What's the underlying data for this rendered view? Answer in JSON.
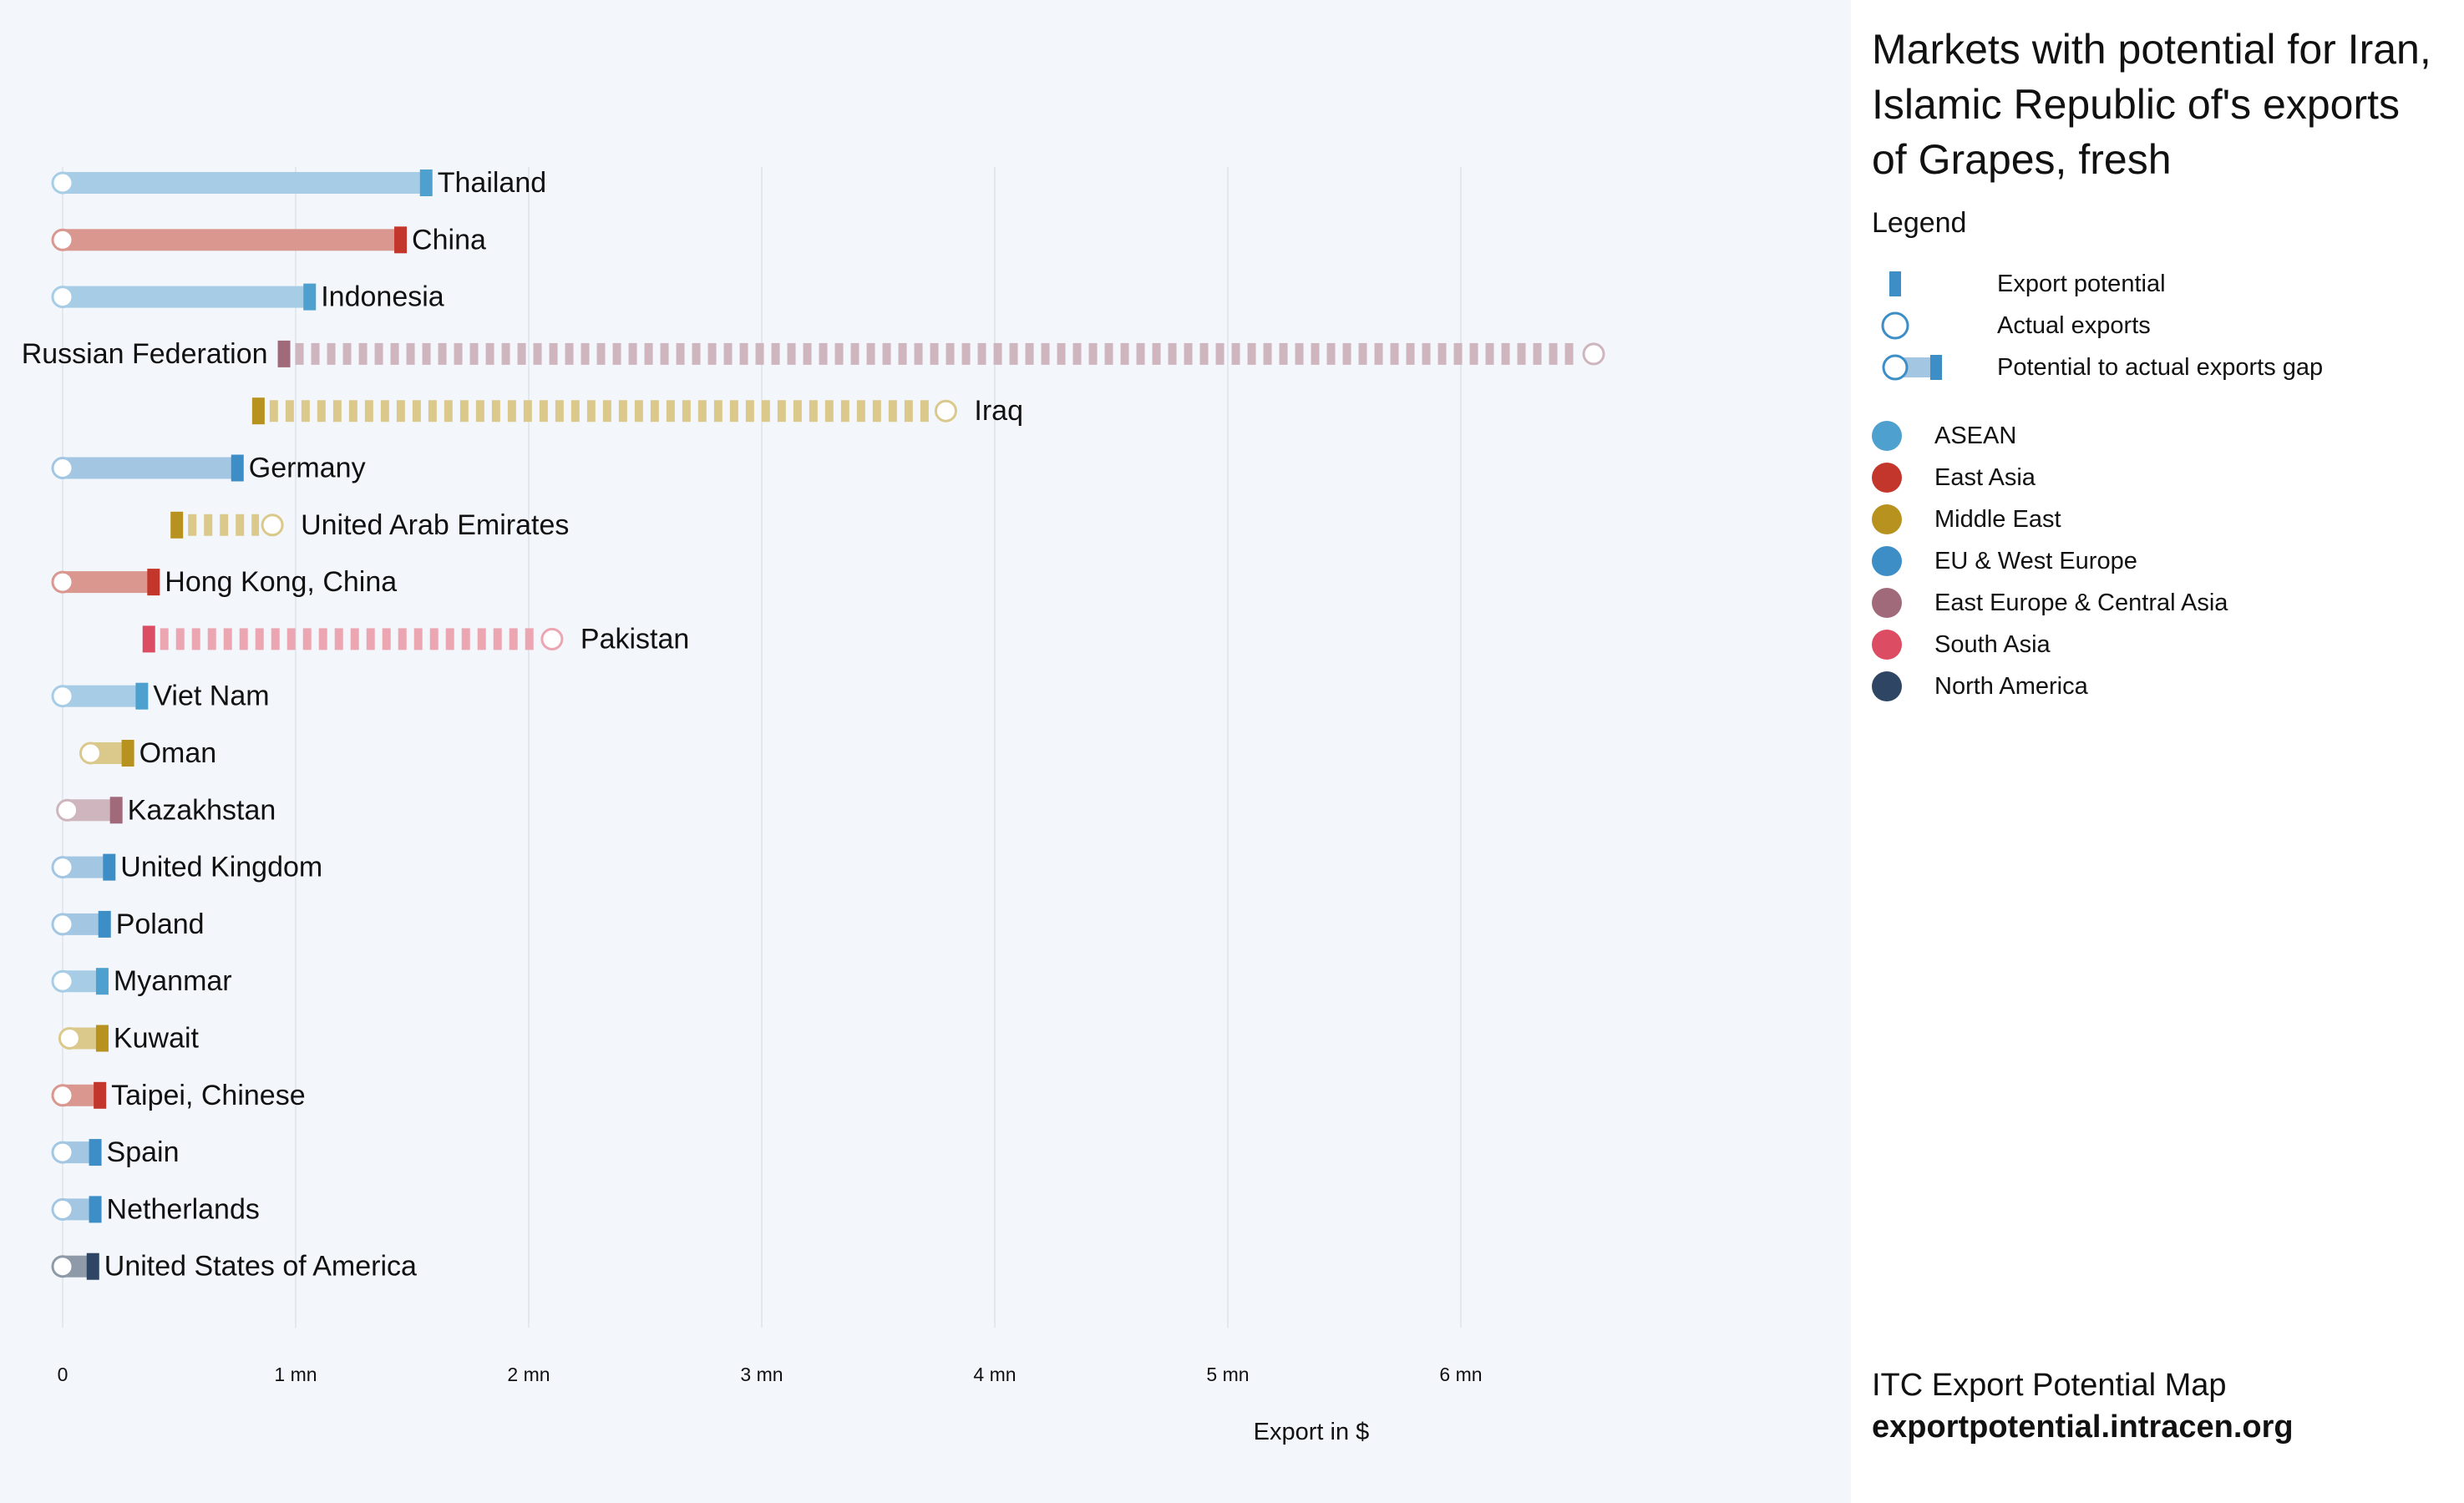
{
  "chart_data": {
    "type": "bar",
    "title": "Markets with potential for Iran, Islamic Republic of's exports of Grapes, fresh",
    "xlabel": "Export in $",
    "ylabel": "",
    "xlim": [
      0,
      7500000
    ],
    "x_ticks": [
      {
        "value": 0,
        "label": "0"
      },
      {
        "value": 1000000,
        "label": "1 mn"
      },
      {
        "value": 2000000,
        "label": "2 mn"
      },
      {
        "value": 3000000,
        "label": "3 mn"
      },
      {
        "value": 4000000,
        "label": "4 mn"
      },
      {
        "value": 5000000,
        "label": "5 mn"
      },
      {
        "value": 6000000,
        "label": "6 mn"
      }
    ],
    "grid": true,
    "legend_position": "right",
    "markets": [
      {
        "name": "Thailand",
        "region": "ASEAN",
        "actual": 0,
        "potential": 1560000
      },
      {
        "name": "China",
        "region": "East Asia",
        "actual": 0,
        "potential": 1450000
      },
      {
        "name": "Indonesia",
        "region": "ASEAN",
        "actual": 0,
        "potential": 1060000
      },
      {
        "name": "Russian Federation",
        "region": "East Europe & Central Asia",
        "actual": 6570000,
        "potential": 950000
      },
      {
        "name": "Iraq",
        "region": "Middle East",
        "actual": 3790000,
        "potential": 840000
      },
      {
        "name": "Germany",
        "region": "EU & West Europe",
        "actual": 0,
        "potential": 750000
      },
      {
        "name": "United Arab Emirates",
        "region": "Middle East",
        "actual": 900000,
        "potential": 490000
      },
      {
        "name": "Hong Kong, China",
        "region": "East Asia",
        "actual": 0,
        "potential": 390000
      },
      {
        "name": "Pakistan",
        "region": "South Asia",
        "actual": 2100000,
        "potential": 370000
      },
      {
        "name": "Viet Nam",
        "region": "ASEAN",
        "actual": 0,
        "potential": 340000
      },
      {
        "name": "Oman",
        "region": "Middle East",
        "actual": 120000,
        "potential": 280000
      },
      {
        "name": "Kazakhstan",
        "region": "East Europe & Central Asia",
        "actual": 20000,
        "potential": 230000
      },
      {
        "name": "United Kingdom",
        "region": "EU & West Europe",
        "actual": 0,
        "potential": 200000
      },
      {
        "name": "Poland",
        "region": "EU & West Europe",
        "actual": 0,
        "potential": 180000
      },
      {
        "name": "Myanmar",
        "region": "ASEAN",
        "actual": 0,
        "potential": 170000
      },
      {
        "name": "Kuwait",
        "region": "Middle East",
        "actual": 30000,
        "potential": 170000
      },
      {
        "name": "Taipei, Chinese",
        "region": "East Asia",
        "actual": 0,
        "potential": 160000
      },
      {
        "name": "Spain",
        "region": "EU & West Europe",
        "actual": 0,
        "potential": 140000
      },
      {
        "name": "Netherlands",
        "region": "EU & West Europe",
        "actual": 0,
        "potential": 140000
      },
      {
        "name": "United States of America",
        "region": "North America",
        "actual": 0,
        "potential": 130000
      }
    ]
  },
  "regions": [
    {
      "name": "ASEAN",
      "color": "#4ea1cf",
      "light": "#a7cde6"
    },
    {
      "name": "East Asia",
      "color": "#c3362b",
      "light": "#d9978f"
    },
    {
      "name": "Middle East",
      "color": "#b8921e",
      "light": "#dbc98c"
    },
    {
      "name": "EU & West Europe",
      "color": "#3d8ec7",
      "light": "#a3c7e3"
    },
    {
      "name": "East Europe & Central Asia",
      "color": "#a06a7a",
      "light": "#cfb5bd"
    },
    {
      "name": "South Asia",
      "color": "#dc4d64",
      "light": "#eba6b2"
    },
    {
      "name": "North America",
      "color": "#2e4663",
      "light": "#8e9aa8"
    }
  ],
  "legend": {
    "heading": "Legend",
    "export_potential": "Export potential",
    "actual_exports": "Actual exports",
    "gap": "Potential to actual exports gap"
  },
  "source": {
    "name": "ITC Export Potential Map",
    "url": "exportpotential.intracen.org"
  }
}
